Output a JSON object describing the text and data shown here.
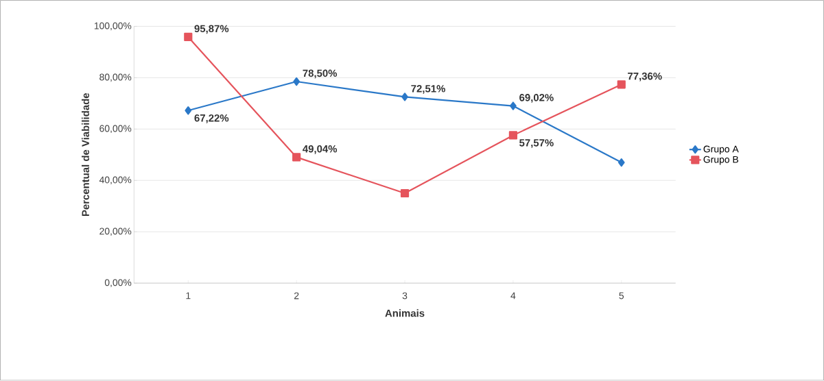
{
  "chart_data": {
    "type": "line",
    "xlabel": "Animais",
    "ylabel": "Percentual de Viabilidade",
    "categories": [
      "1",
      "2",
      "3",
      "4",
      "5"
    ],
    "series": [
      {
        "name": "Grupo A",
        "color": "#2a78c8",
        "marker": "diamond",
        "values": [
          67.22,
          78.5,
          72.51,
          69.02,
          47
        ],
        "value_labels": [
          "67,22%",
          "78,50%",
          "72,51%",
          "69,02%",
          null
        ]
      },
      {
        "name": "Grupo B",
        "color": "#e5545c",
        "marker": "square",
        "values": [
          95.87,
          49.04,
          35,
          57.57,
          77.36
        ],
        "value_labels": [
          "95,87%",
          "49,04%",
          null,
          "57,57%",
          "77,36%"
        ]
      }
    ],
    "ylim": [
      0,
      100
    ],
    "yticks": [
      {
        "value": 0,
        "label": "0,00%"
      },
      {
        "value": 20,
        "label": "20,00%"
      },
      {
        "value": 40,
        "label": "40,00%"
      },
      {
        "value": 60,
        "label": "60,00%"
      },
      {
        "value": 80,
        "label": "80,00%"
      },
      {
        "value": 100,
        "label": "100,00%"
      }
    ],
    "grid": "y",
    "legend": "right"
  }
}
